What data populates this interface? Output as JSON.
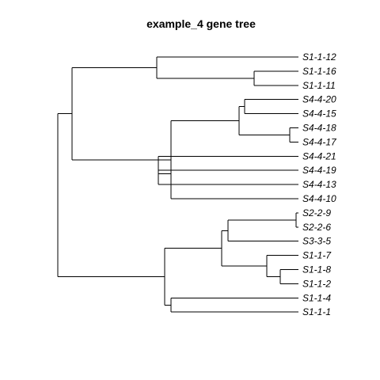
{
  "title": "example_4 gene tree",
  "colors": {
    "line": "#000000",
    "text": "#000000",
    "background": "#ffffff"
  },
  "tree": {
    "children": [
      {
        "children": [
          {
            "children": [
              {
                "label": "S1-1-12"
              },
              {
                "children": [
                  {
                    "label": "S1-1-16"
                  },
                  {
                    "label": "S1-1-11"
                  }
                ]
              }
            ]
          },
          {
            "children": [
              {
                "children": [
                  {
                    "children": [
                      {
                        "label": "S4-4-20"
                      },
                      {
                        "label": "S4-4-15"
                      }
                    ]
                  },
                  {
                    "children": [
                      {
                        "label": "S4-4-18"
                      },
                      {
                        "label": "S4-4-17"
                      }
                    ]
                  }
                ]
              },
              {
                "children": [
                  {
                    "children": [
                      {
                        "label": "S4-4-21"
                      },
                      {
                        "label": "S4-4-19"
                      }
                    ]
                  },
                  {
                    "label": "S4-4-13"
                  }
                ]
              },
              {
                "label": "S4-4-10"
              }
            ]
          }
        ]
      },
      {
        "children": [
          {
            "children": [
              {
                "children": [
                  {
                    "children": [
                      {
                        "label": "S2-2-9"
                      },
                      {
                        "label": "S2-2-6"
                      }
                    ]
                  },
                  {
                    "label": "S3-3-5"
                  }
                ]
              },
              {
                "children": [
                  {
                    "label": "S1-1-7"
                  },
                  {
                    "children": [
                      {
                        "label": "S1-1-8"
                      },
                      {
                        "label": "S1-1-2"
                      }
                    ]
                  }
                ]
              }
            ]
          },
          {
            "children": [
              {
                "label": "S1-1-4"
              },
              {
                "label": "S1-1-1"
              }
            ]
          }
        ]
      }
    ]
  }
}
